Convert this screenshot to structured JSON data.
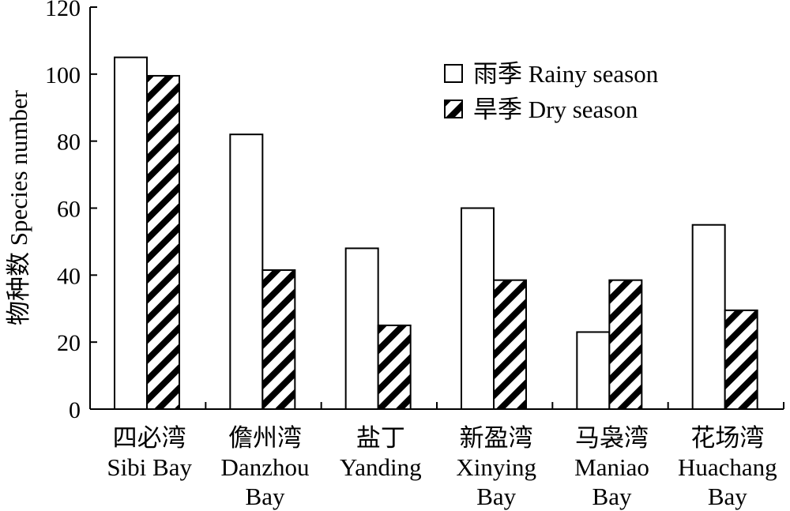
{
  "chart_data": {
    "type": "bar",
    "ylabel": "物种数 Species number",
    "ylim": [
      0,
      120
    ],
    "yticks": [
      0,
      20,
      40,
      60,
      80,
      100,
      120
    ],
    "categories": [
      [
        "四必湾",
        "Sibi Bay"
      ],
      [
        "儋州湾",
        "Danzhou",
        "Bay"
      ],
      [
        "盐丁",
        "Yanding"
      ],
      [
        "新盈湾",
        "Xinying",
        "Bay"
      ],
      [
        "马袅湾",
        "Maniao",
        "Bay"
      ],
      [
        "花场湾",
        "Huachang",
        "Bay"
      ]
    ],
    "series": [
      {
        "name": "雨季 Rainy season",
        "values": [
          105,
          82,
          48,
          60,
          23,
          55
        ],
        "pattern": "none"
      },
      {
        "name": "旱季 Dry season",
        "values": [
          99.5,
          41.5,
          25,
          38.5,
          38.5,
          29.5
        ],
        "pattern": "diagonal-hatch"
      }
    ],
    "legend_position": "top-right",
    "grid": false,
    "colors": {
      "axis": "#000000",
      "bar_fill": "#ffffff",
      "hatch": "#000000"
    }
  }
}
